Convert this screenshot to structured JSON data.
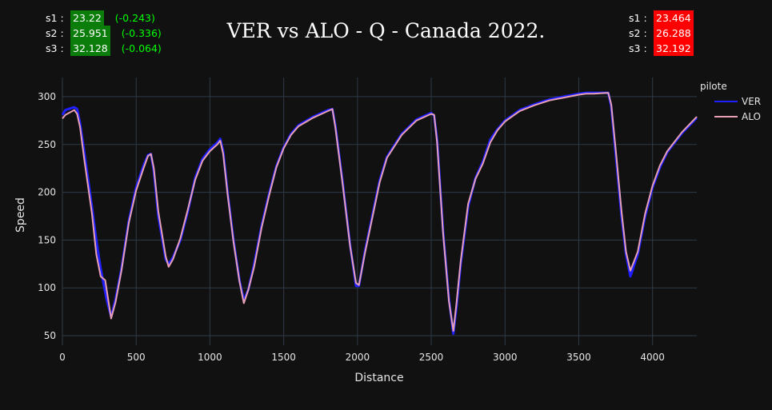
{
  "title": "VER vs ALO - Q - Canada 2022.",
  "sectors_left": [
    {
      "label": "s1 :",
      "value": "23.22",
      "delta": "(-0.243)"
    },
    {
      "label": "s2 :",
      "value": "25.951",
      "delta": "(-0.336)"
    },
    {
      "label": "s3 :",
      "value": "32.128",
      "delta": "(-0.064)"
    }
  ],
  "sectors_right": [
    {
      "label": "s1 :",
      "value": "23.464"
    },
    {
      "label": "s2 :",
      "value": "26.288"
    },
    {
      "label": "s3 :",
      "value": "32.192"
    }
  ],
  "colors": {
    "background": "#111111",
    "grid": "#2f3a48",
    "good_sector": "#0a7d0a",
    "bad_sector": "#ff0000",
    "delta_text": "#00ff00"
  },
  "chart_data": {
    "type": "line",
    "xlabel": "Distance",
    "ylabel": "Speed",
    "xlim": [
      0,
      4300
    ],
    "ylim": [
      40,
      320
    ],
    "xticks": [
      0,
      500,
      1000,
      1500,
      2000,
      2500,
      3000,
      3500,
      4000
    ],
    "yticks": [
      50,
      100,
      150,
      200,
      250,
      300
    ],
    "grid": true,
    "legend_title": "pilote",
    "legend_position": "top-right",
    "series": [
      {
        "name": "VER",
        "color": "#1f1fff",
        "x": [
          0,
          20,
          80,
          100,
          120,
          150,
          200,
          230,
          260,
          300,
          330,
          360,
          400,
          450,
          500,
          550,
          580,
          600,
          620,
          650,
          700,
          720,
          750,
          800,
          850,
          900,
          950,
          1000,
          1050,
          1070,
          1090,
          1120,
          1160,
          1200,
          1230,
          1260,
          1300,
          1350,
          1400,
          1450,
          1500,
          1550,
          1600,
          1700,
          1800,
          1830,
          1850,
          1900,
          1950,
          1990,
          2010,
          2050,
          2100,
          2150,
          2200,
          2300,
          2400,
          2500,
          2520,
          2540,
          2580,
          2620,
          2650,
          2670,
          2700,
          2750,
          2800,
          2850,
          2900,
          2950,
          3000,
          3100,
          3200,
          3300,
          3400,
          3500,
          3550,
          3600,
          3700,
          3720,
          3750,
          3790,
          3820,
          3850,
          3900,
          3950,
          4000,
          4050,
          4100,
          4200,
          4300
        ],
        "y": [
          281,
          286,
          289,
          287,
          272,
          240,
          185,
          150,
          120,
          88,
          70,
          88,
          120,
          170,
          205,
          228,
          239,
          240,
          222,
          175,
          130,
          125,
          132,
          150,
          180,
          215,
          235,
          245,
          252,
          256,
          243,
          200,
          150,
          108,
          87,
          98,
          125,
          165,
          198,
          227,
          247,
          261,
          270,
          279,
          286,
          287,
          270,
          210,
          145,
          102,
          102,
          138,
          175,
          212,
          237,
          261,
          276,
          283,
          280,
          255,
          160,
          88,
          52,
          78,
          125,
          185,
          215,
          232,
          255,
          266,
          275,
          286,
          292,
          297,
          300,
          303,
          304,
          304,
          304,
          290,
          240,
          175,
          135,
          112,
          135,
          175,
          205,
          226,
          242,
          262,
          278
        ]
      },
      {
        "name": "ALO",
        "color": "#e8a0b4",
        "x": [
          0,
          20,
          80,
          100,
          120,
          150,
          200,
          230,
          260,
          290,
          330,
          360,
          400,
          450,
          500,
          550,
          580,
          600,
          620,
          650,
          700,
          720,
          750,
          800,
          850,
          900,
          950,
          1000,
          1050,
          1070,
          1090,
          1120,
          1160,
          1200,
          1230,
          1260,
          1300,
          1350,
          1400,
          1450,
          1500,
          1550,
          1600,
          1700,
          1800,
          1830,
          1850,
          1900,
          1950,
          1990,
          2010,
          2050,
          2100,
          2150,
          2200,
          2300,
          2400,
          2500,
          2520,
          2540,
          2580,
          2620,
          2650,
          2670,
          2700,
          2750,
          2800,
          2850,
          2900,
          2950,
          3000,
          3100,
          3200,
          3300,
          3400,
          3500,
          3550,
          3600,
          3700,
          3720,
          3750,
          3790,
          3820,
          3850,
          3900,
          3950,
          4000,
          4050,
          4100,
          4200,
          4300
        ],
        "y": [
          277,
          281,
          286,
          282,
          268,
          232,
          178,
          135,
          112,
          108,
          68,
          85,
          118,
          168,
          202,
          225,
          238,
          240,
          225,
          180,
          133,
          122,
          130,
          152,
          182,
          213,
          233,
          243,
          250,
          254,
          240,
          198,
          148,
          107,
          84,
          98,
          122,
          163,
          196,
          226,
          246,
          260,
          269,
          278,
          285,
          287,
          268,
          208,
          144,
          105,
          103,
          136,
          173,
          210,
          236,
          260,
          275,
          282,
          281,
          252,
          158,
          86,
          55,
          82,
          128,
          188,
          214,
          230,
          252,
          265,
          274,
          285,
          291,
          296,
          299,
          302,
          303,
          303,
          304,
          292,
          245,
          180,
          138,
          118,
          138,
          178,
          207,
          228,
          243,
          263,
          279
        ]
      }
    ]
  }
}
